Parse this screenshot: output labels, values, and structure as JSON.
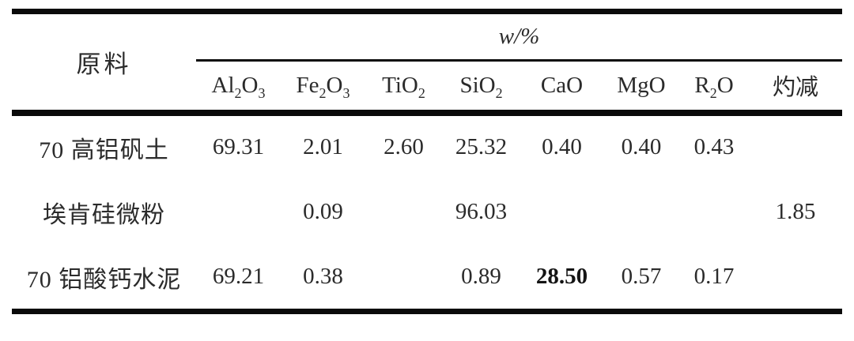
{
  "table": {
    "corner_header": "原料",
    "span_header": {
      "italic": "w",
      "rest": "/%"
    },
    "columns": [
      "Al2O3",
      "Fe2O3",
      "TiO2",
      "SiO2",
      "CaO",
      "MgO",
      "R2O",
      "灼减"
    ],
    "rows": [
      {
        "label": "70 高铝矾土",
        "values": [
          "69.31",
          "2.01",
          "2.60",
          "25.32",
          "0.40",
          "0.40",
          "0.43",
          ""
        ]
      },
      {
        "label": "埃肯硅微粉",
        "values": [
          "",
          "0.09",
          "",
          "96.03",
          "",
          "",
          "",
          "1.85"
        ]
      },
      {
        "label": "70 铝酸钙水泥",
        "values": [
          "69.21",
          "0.38",
          "",
          "0.89",
          {
            "text": "28.50",
            "bold": true
          },
          "0.57",
          "0.17",
          ""
        ]
      }
    ],
    "colors": {
      "text": "#2b2b2b",
      "rule": "#0a0a0a",
      "background": "#ffffff"
    }
  }
}
